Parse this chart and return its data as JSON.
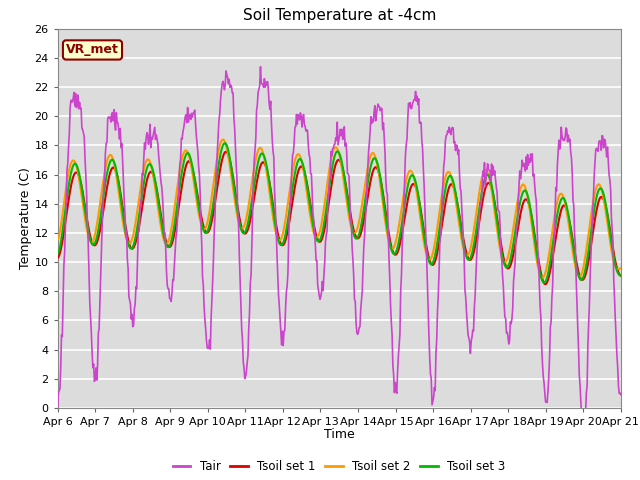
{
  "title": "Soil Temperature at -4cm",
  "xlabel": "Time",
  "ylabel": "Temperature (C)",
  "ylim": [
    0,
    26
  ],
  "yticks": [
    0,
    2,
    4,
    6,
    8,
    10,
    12,
    14,
    16,
    18,
    20,
    22,
    24,
    26
  ],
  "fig_bg_color": "#ffffff",
  "plot_bg_color": "#dcdcdc",
  "grid_color": "#ffffff",
  "line_colors": {
    "Tair": "#cc44cc",
    "Tsoil set 1": "#dd0000",
    "Tsoil set 2": "#ff9900",
    "Tsoil set 3": "#00bb00"
  },
  "line_widths": {
    "Tair": 1.2,
    "Tsoil set 1": 1.5,
    "Tsoil set 2": 1.5,
    "Tsoil set 3": 1.5
  },
  "annotation_text": "VR_met",
  "annotation_box_color": "#ffffcc",
  "annotation_border_color": "#8B0000",
  "x_tick_labels": [
    "Apr 6",
    "Apr 7",
    "Apr 8",
    "Apr 9",
    "Apr 10",
    "Apr 11",
    "Apr 12",
    "Apr 13",
    "Apr 14",
    "Apr 15",
    "Apr 16",
    "Apr 17",
    "Apr 18",
    "Apr 19",
    "Apr 20",
    "Apr 21"
  ]
}
